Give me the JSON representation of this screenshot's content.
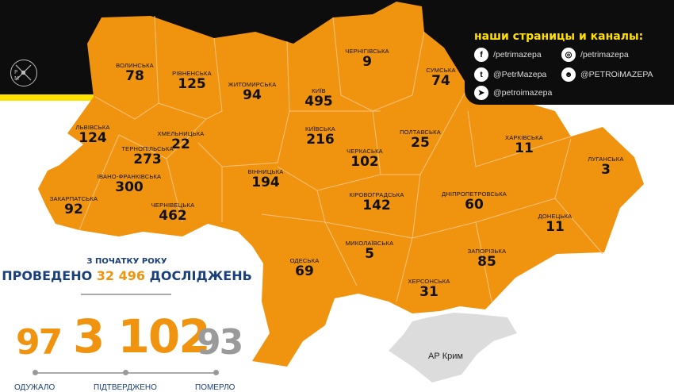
{
  "colors": {
    "map": "#f09410",
    "header": "#0d0d0d",
    "accent_yellow": "#ffe000",
    "navy": "#1a3f7a",
    "crimea": "#dcdcdc",
    "grey_number": "#9a9a9a"
  },
  "logo": {
    "letters": "P M"
  },
  "social": {
    "title": "наши страницы и каналы:",
    "items": [
      {
        "icon": "facebook-icon",
        "glyph": "f",
        "text": "/petrimazepa"
      },
      {
        "icon": "instagram-icon",
        "glyph": "◎",
        "text": "/petrimazepa"
      },
      {
        "icon": "twitter-icon",
        "glyph": "t",
        "text": "@PetrMazepa"
      },
      {
        "icon": "reddit-icon",
        "glyph": "☻",
        "text": "@PETROiMAZEPA"
      },
      {
        "icon": "telegram-icon",
        "glyph": "➤",
        "text": "@petroimazepa"
      }
    ]
  },
  "regions": [
    {
      "name": "ВОЛИНСЬКА",
      "value": "78"
    },
    {
      "name": "РІВНЕНСЬКА",
      "value": "125"
    },
    {
      "name": "ЖИТОМИРСЬКА",
      "value": "94"
    },
    {
      "name": "КИЇВ",
      "value": "495"
    },
    {
      "name": "ЧЕРНІГІВСЬКА",
      "value": "9"
    },
    {
      "name": "СУМСЬКА",
      "value": "74"
    },
    {
      "name": "ЛЬВІВСЬКА",
      "value": "124"
    },
    {
      "name": "ХМЕЛЬНИЦЬКА",
      "value": "22"
    },
    {
      "name": "ТЕРНОПІЛЬСЬКА",
      "value": "273"
    },
    {
      "name": "КИЇВСЬКА",
      "value": "216"
    },
    {
      "name": "ПОЛТАВСЬКА",
      "value": "25"
    },
    {
      "name": "ХАРКІВСЬКА",
      "value": "11"
    },
    {
      "name": "ЛУГАНСЬКА",
      "value": "3"
    },
    {
      "name": "ЧЕРКАСЬКА",
      "value": "102"
    },
    {
      "name": "ІВАНО-ФРАНКІВСЬКА",
      "value": "300"
    },
    {
      "name": "ЗАКАРПАТСЬКА",
      "value": "92"
    },
    {
      "name": "ЧЕРНІВЕЦЬКА",
      "value": "462"
    },
    {
      "name": "ВІННИЦЬКА",
      "value": "194"
    },
    {
      "name": "КІРОВОГРАДСЬКА",
      "value": "142"
    },
    {
      "name": "ДНІПРОПЕТРОВСЬКА",
      "value": "60"
    },
    {
      "name": "ДОНЕЦЬКА",
      "value": "11"
    },
    {
      "name": "МИКОЛАЇВСЬКА",
      "value": "5"
    },
    {
      "name": "ОДЕСЬКА",
      "value": "69"
    },
    {
      "name": "ЗАПОРІЗЬКА",
      "value": "85"
    },
    {
      "name": "ХЕРСОНСЬКА",
      "value": "31"
    }
  ],
  "crimea": {
    "label": "АР Крим"
  },
  "stats": {
    "since": "З ПОЧАТКУ РОКУ",
    "tests_prefix": "ПРОВЕДЕНО",
    "tests_value": "32 496",
    "tests_suffix": "ДОСЛІДЖЕНЬ",
    "recovered": "97",
    "recovered_label": "ОДУЖАЛО",
    "confirmed": "3 102",
    "confirmed_label": "ПІДТВЕРДЖЕНО",
    "deaths": "93",
    "deaths_label": "ПОМЕРЛО"
  }
}
